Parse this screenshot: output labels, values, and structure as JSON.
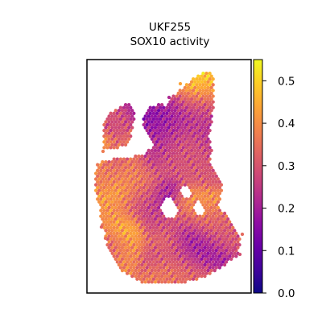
{
  "chart_data": {
    "type": "scatter",
    "title_line1": "UKF255",
    "title_line2": "SOX10 activity",
    "xlabel": "",
    "ylabel": "",
    "grid": false,
    "legend": "none",
    "marker": "hexagonal spatial spots",
    "colormap": "plasma",
    "colorbar": {
      "label": "",
      "vmin": 0.0,
      "vmax": 0.55,
      "ticks": [
        0.0,
        0.1,
        0.2,
        0.3,
        0.4,
        0.5
      ],
      "tick_labels": [
        "0.0",
        "0.1",
        "0.2",
        "0.3",
        "0.4",
        "0.5"
      ]
    },
    "colors": {
      "low": "#0d0887",
      "mid_low": "#7e03a8",
      "mid": "#cc4778",
      "mid_high": "#f89540",
      "high": "#f0f921"
    },
    "hotspots": [
      {
        "x": 0.5,
        "y": 0.93,
        "v": 0.34
      },
      {
        "x": 0.56,
        "y": 0.86,
        "v": 0.22
      },
      {
        "x": 0.63,
        "y": 0.78,
        "v": 0.18
      },
      {
        "x": 0.57,
        "y": 0.7,
        "v": 0.28
      },
      {
        "x": 0.47,
        "y": 0.73,
        "v": 0.3
      },
      {
        "x": 0.48,
        "y": 0.6,
        "v": 0.1
      },
      {
        "x": 0.42,
        "y": 0.69,
        "v": 0.25
      },
      {
        "x": 0.4,
        "y": 0.58,
        "v": 0.34
      },
      {
        "x": 0.6,
        "y": 0.63,
        "v": 0.4
      },
      {
        "x": 0.51,
        "y": 0.43,
        "v": 0.3
      },
      {
        "x": 0.71,
        "y": 0.47,
        "v": 0.3
      },
      {
        "x": 0.15,
        "y": 0.69,
        "v": 0.38
      },
      {
        "x": 0.18,
        "y": 0.6,
        "v": 0.44
      },
      {
        "x": 0.27,
        "y": 0.64,
        "v": 0.25
      },
      {
        "x": 0.03,
        "y": 0.48,
        "v": 0.38
      },
      {
        "x": 0.1,
        "y": 0.47,
        "v": 0.36
      },
      {
        "x": 0.05,
        "y": 0.36,
        "v": 0.5
      },
      {
        "x": 0.15,
        "y": 0.4,
        "v": 0.2
      },
      {
        "x": 0.22,
        "y": 0.47,
        "v": 0.4
      },
      {
        "x": 0.3,
        "y": 0.5,
        "v": 0.35
      },
      {
        "x": 0.36,
        "y": 0.39,
        "v": 0.2
      },
      {
        "x": 0.26,
        "y": 0.37,
        "v": 0.45
      },
      {
        "x": 0.46,
        "y": 0.34,
        "v": 0.22
      },
      {
        "x": 0.53,
        "y": 0.39,
        "v": 0.26
      },
      {
        "x": 0.61,
        "y": 0.39,
        "v": 0.3
      },
      {
        "x": 0.67,
        "y": 0.3,
        "v": 0.28
      },
      {
        "x": 0.71,
        "y": 0.4,
        "v": 0.28
      },
      {
        "x": 0.15,
        "y": 0.26,
        "v": 0.22
      },
      {
        "x": 0.1,
        "y": 0.17,
        "v": 0.32
      },
      {
        "x": 0.14,
        "y": 0.08,
        "v": 0.2
      },
      {
        "x": 0.28,
        "y": 0.15,
        "v": 0.18
      },
      {
        "x": 0.2,
        "y": 0.24,
        "v": 0.35
      },
      {
        "x": 0.35,
        "y": 0.12,
        "v": 0.25
      },
      {
        "x": 0.33,
        "y": 0.2,
        "v": 0.12
      },
      {
        "x": 0.4,
        "y": 0.27,
        "v": 0.18
      },
      {
        "x": 0.6,
        "y": 0.24,
        "v": 0.2
      },
      {
        "x": 0.7,
        "y": 0.16,
        "v": 0.3
      },
      {
        "x": 0.77,
        "y": 0.2,
        "v": 0.22
      },
      {
        "x": 0.74,
        "y": 0.08,
        "v": 0.5
      },
      {
        "x": 0.83,
        "y": 0.12,
        "v": 0.35
      },
      {
        "x": 0.79,
        "y": 0.29,
        "v": 0.2
      },
      {
        "x": 0.88,
        "y": 0.25,
        "v": 0.32
      },
      {
        "x": 0.93,
        "y": 0.18,
        "v": 0.45
      },
      {
        "x": 0.2,
        "y": 0.74,
        "v": 0.5
      },
      {
        "x": 0.22,
        "y": 0.83,
        "v": 0.4
      },
      {
        "x": 0.13,
        "y": 0.81,
        "v": 0.3
      },
      {
        "x": 0.48,
        "y": 0.83,
        "v": 0.4
      },
      {
        "x": 0.45,
        "y": 0.87,
        "v": 0.22
      },
      {
        "x": 0.48,
        "y": 0.95,
        "v": 0.4
      },
      {
        "x": 0.54,
        "y": 0.98,
        "v": 0.32
      },
      {
        "x": 0.7,
        "y": 0.64,
        "v": 0.42
      },
      {
        "x": 0.72,
        "y": 0.7,
        "v": 0.3
      }
    ]
  }
}
